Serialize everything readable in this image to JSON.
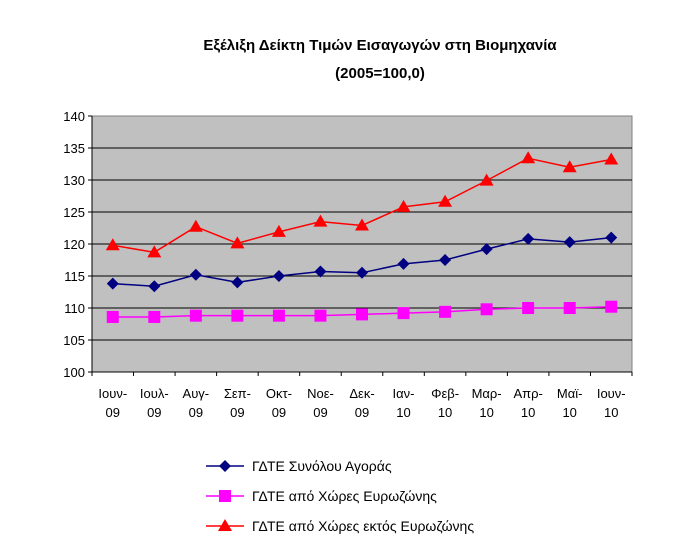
{
  "chart_data": {
    "type": "line",
    "title": "Εξέλιξη Δείκτη Τιμών Εισαγωγών στη Βιομηχανία",
    "subtitle": "(2005=100,0)",
    "categories": [
      [
        "Ιουν-",
        "09"
      ],
      [
        "Ιουλ-",
        "09"
      ],
      [
        "Αυγ-",
        "09"
      ],
      [
        "Σεπ-",
        "09"
      ],
      [
        "Οκτ-",
        "09"
      ],
      [
        "Νοε-",
        "09"
      ],
      [
        "Δεκ-",
        "09"
      ],
      [
        "Ιαν-",
        "10"
      ],
      [
        "Φεβ-",
        "10"
      ],
      [
        "Μαρ-",
        "10"
      ],
      [
        "Απρ-",
        "10"
      ],
      [
        "Μαϊ-",
        "10"
      ],
      [
        "Ιουν-",
        "10"
      ]
    ],
    "ylim": [
      100,
      140
    ],
    "yticks": [
      100,
      105,
      110,
      115,
      120,
      125,
      130,
      135,
      140
    ],
    "grid": true,
    "legend": "bottom",
    "series": [
      {
        "name": "ΓΔΤΕ Συνόλου Αγοράς",
        "color": "#000080",
        "marker": "diamond",
        "values": [
          113.8,
          113.4,
          115.2,
          114.0,
          115.0,
          115.7,
          115.5,
          116.9,
          117.5,
          119.2,
          120.8,
          120.3,
          121.0
        ]
      },
      {
        "name": "ΓΔΤΕ από Χώρες Ευρωζώνης",
        "color": "#FF00FF",
        "marker": "square",
        "values": [
          108.6,
          108.6,
          108.8,
          108.8,
          108.8,
          108.8,
          109.0,
          109.2,
          109.4,
          109.8,
          110.0,
          110.0,
          110.2
        ]
      },
      {
        "name": "ΓΔΤΕ από Χώρες εκτός Ευρωζώνης",
        "color": "#FF0000",
        "marker": "triangle",
        "values": [
          119.8,
          118.7,
          122.7,
          120.1,
          121.9,
          123.5,
          122.9,
          125.8,
          126.6,
          129.9,
          133.4,
          132.0,
          133.2
        ]
      }
    ]
  }
}
